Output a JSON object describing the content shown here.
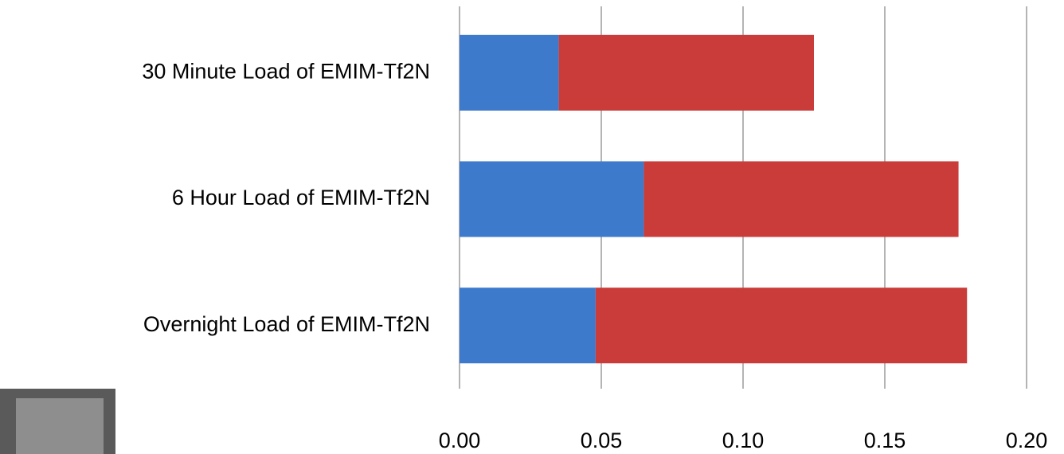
{
  "chart_data": {
    "type": "stacked-barh",
    "categories": [
      "30 Minute Load of EMIM-Tf2N",
      "6 Hour Load of EMIM-Tf2N",
      "Overnight Load of EMIM-Tf2N"
    ],
    "series": [
      {
        "color": "#3d7acb",
        "values": [
          0.035,
          0.065,
          0.048
        ]
      },
      {
        "color": "#c93c3a",
        "values": [
          0.09,
          0.111,
          0.131
        ]
      }
    ],
    "xlim": [
      0,
      0.2
    ],
    "xticks": [
      {
        "value": 0,
        "label": "0.00"
      },
      {
        "value": 0.05,
        "label": "0.05"
      },
      {
        "value": 0.1,
        "label": "0.10"
      },
      {
        "value": 0.15,
        "label": "0.15"
      },
      {
        "value": 0.2,
        "label": "0.20"
      }
    ],
    "grid": true
  }
}
